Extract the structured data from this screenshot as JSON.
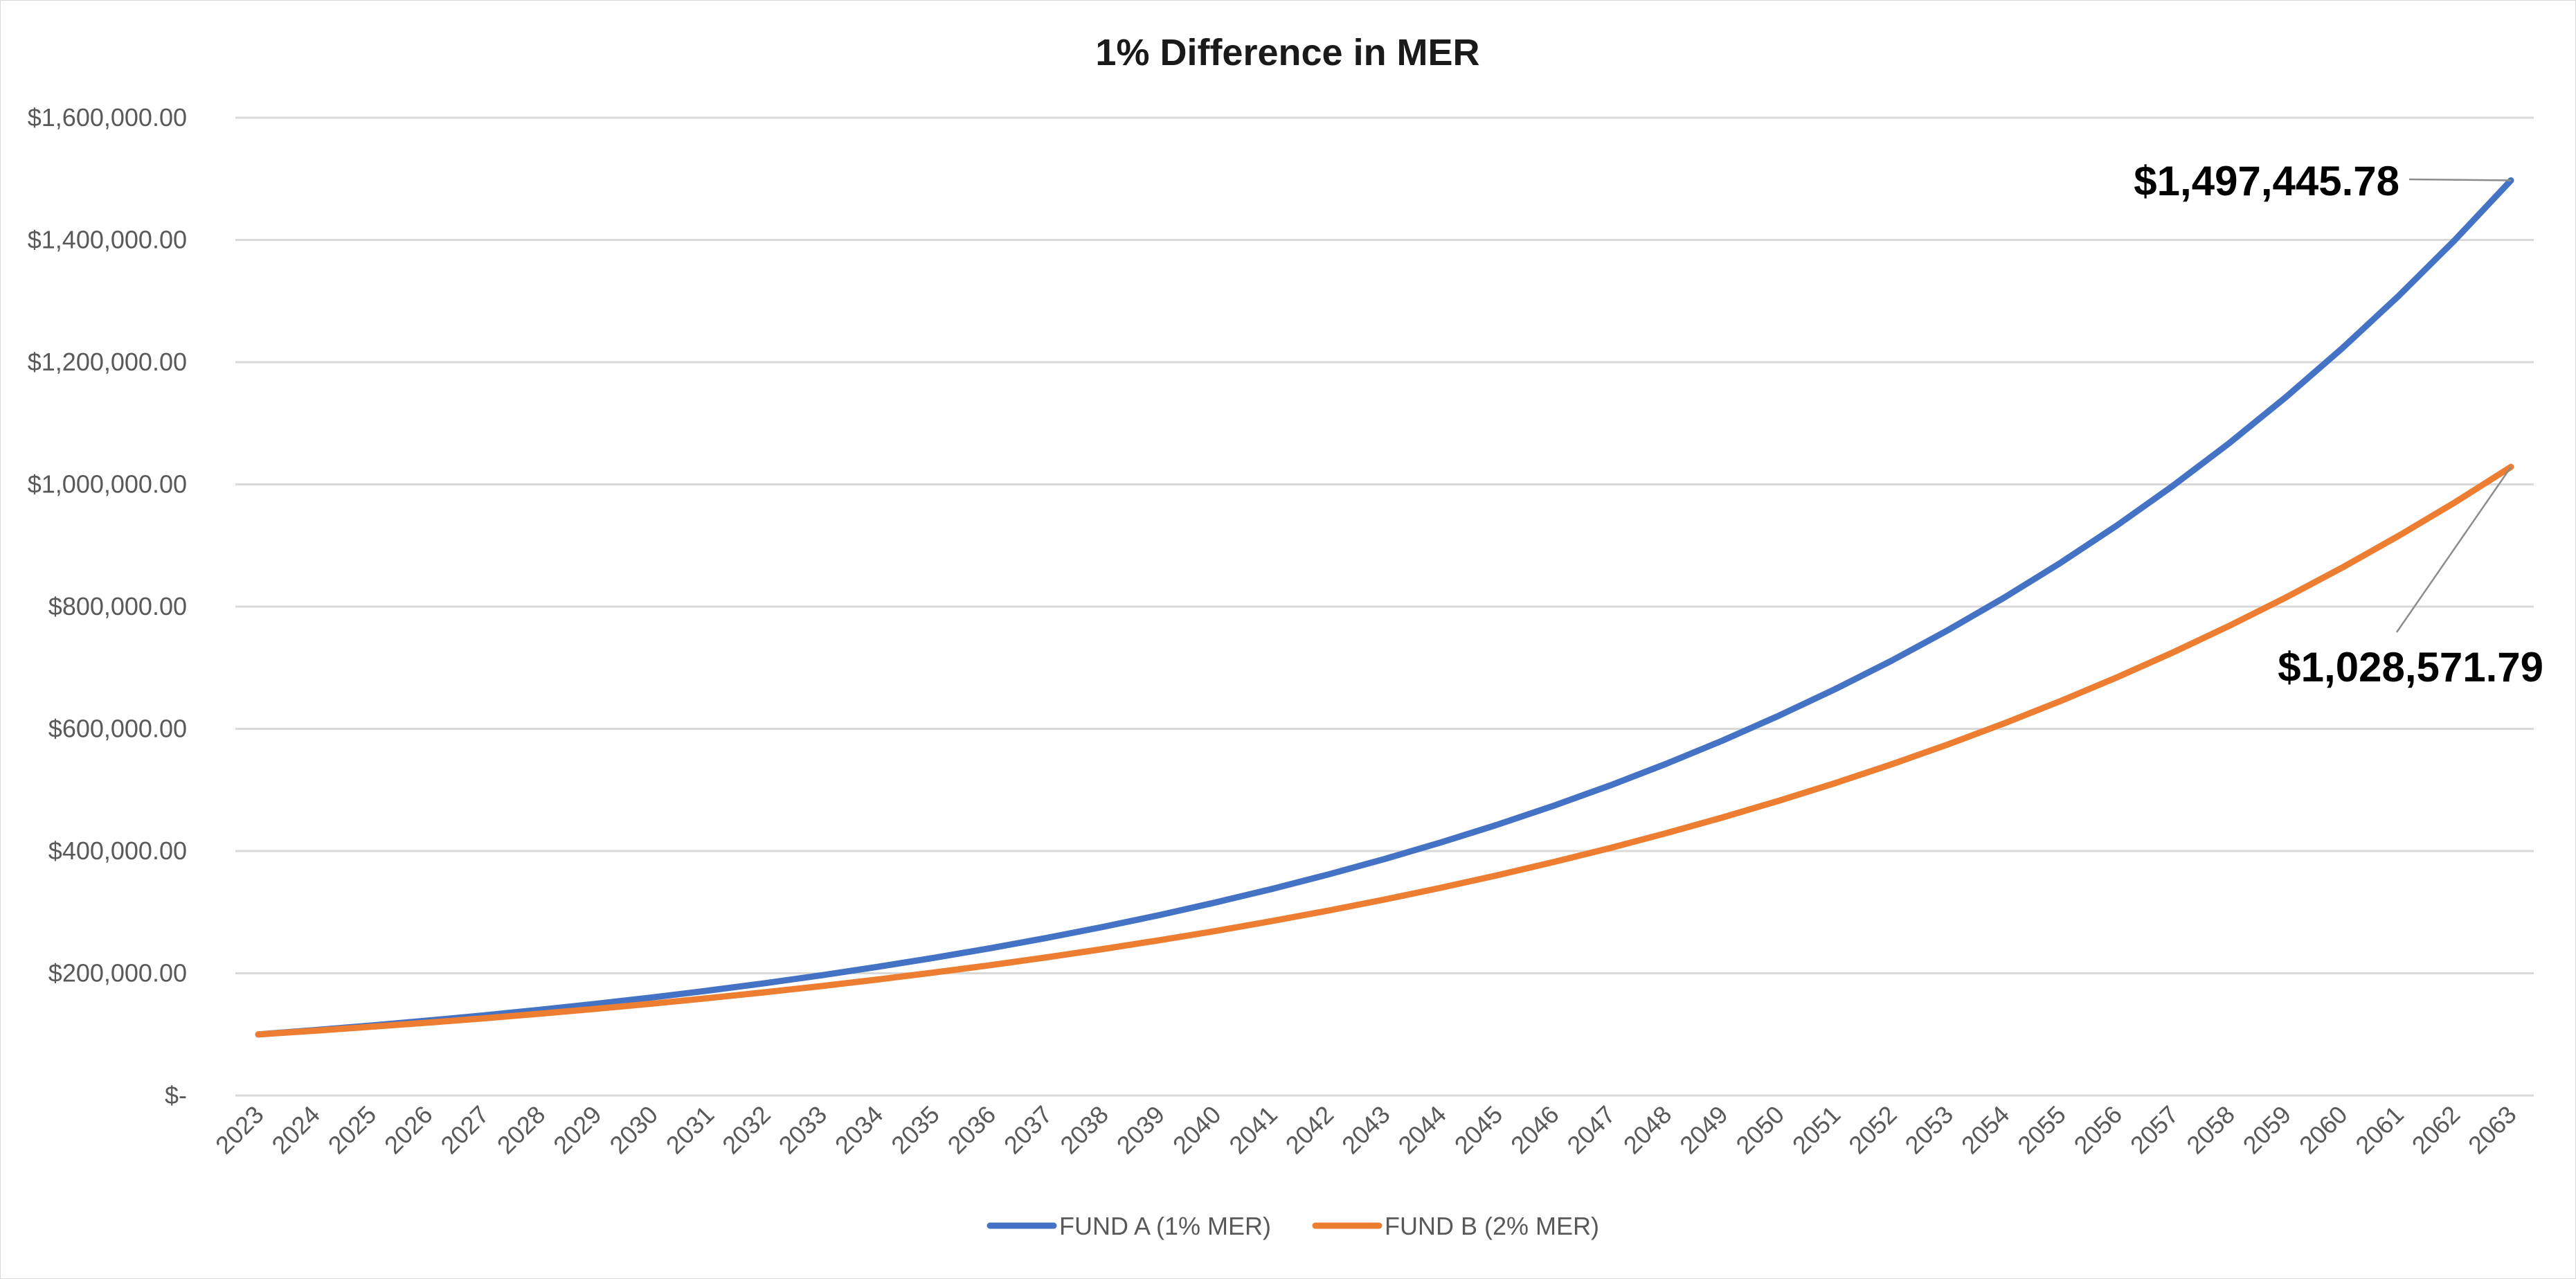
{
  "chart_data": {
    "type": "line",
    "title": "1% Difference in MER",
    "xlabel": "",
    "ylabel": "",
    "ylim": [
      0,
      1600000
    ],
    "y_tick_values": [
      0,
      200000,
      400000,
      600000,
      800000,
      1000000,
      1200000,
      1400000,
      1600000
    ],
    "y_tick_labels": [
      "$-",
      "$200,000.00",
      "$400,000.00",
      "$600,000.00",
      "$800,000.00",
      "$1,000,000.00",
      "$1,200,000.00",
      "$1,400,000.00",
      "$1,600,000.00"
    ],
    "grid": true,
    "legend_position": "bottom",
    "categories": [
      "2023",
      "2024",
      "2025",
      "2026",
      "2027",
      "2028",
      "2029",
      "2030",
      "2031",
      "2032",
      "2033",
      "2034",
      "2035",
      "2036",
      "2037",
      "2038",
      "2039",
      "2040",
      "2041",
      "2042",
      "2043",
      "2044",
      "2045",
      "2046",
      "2047",
      "2048",
      "2049",
      "2050",
      "2051",
      "2052",
      "2053",
      "2054",
      "2055",
      "2056",
      "2057",
      "2058",
      "2059",
      "2060",
      "2061",
      "2062",
      "2063"
    ],
    "series": [
      {
        "name": "FUND A (1% MER)",
        "color": "#4472c4",
        "values": [
          100000.0,
          107000.0,
          114490.0,
          122504.3,
          131079.6,
          140255.17,
          150073.04,
          160578.15,
          171818.62,
          183845.92,
          196715.14,
          210485.2,
          225219.16,
          240984.5,
          257853.42,
          275903.15,
          295216.37,
          315881.51,
          337993.22,
          361652.74,
          386968.43,
          414056.22,
          443040.15,
          474052.96,
          507236.67,
          542743.24,
          580735.26,
          621386.73,
          664883.8,
          711425.67,
          761225.46,
          814511.24,
          871527.03,
          932533.92,
          997811.29,
          1067658.08,
          1142394.14,
          1222361.73,
          1307927.05,
          1399481.94,
          1497445.78
        ]
      },
      {
        "name": "FUND B (2% MER)",
        "color": "#ed7d31",
        "values": [
          100000.0,
          106000.0,
          112360.0,
          119101.6,
          126247.7,
          133822.56,
          141851.91,
          150363.03,
          159384.81,
          168947.9,
          179084.77,
          189829.86,
          201219.65,
          213292.83,
          226090.4,
          239655.82,
          254035.17,
          269277.28,
          285433.92,
          302559.95,
          320713.55,
          339956.36,
          360353.74,
          381974.96,
          404893.46,
          429187.07,
          454938.29,
          482234.59,
          511168.67,
          541838.79,
          574349.12,
          608810.06,
          645338.67,
          684058.99,
          725102.53,
          768608.69,
          814725.21,
          863608.72,
          915425.24,
          970350.76,
          1028571.79
        ]
      }
    ],
    "annotations": [
      {
        "series": "FUND A (1% MER)",
        "x": "2063",
        "text": "$1,497,445.78"
      },
      {
        "series": "FUND B (2% MER)",
        "x": "2063",
        "text": "$1,028,571.79"
      }
    ]
  }
}
